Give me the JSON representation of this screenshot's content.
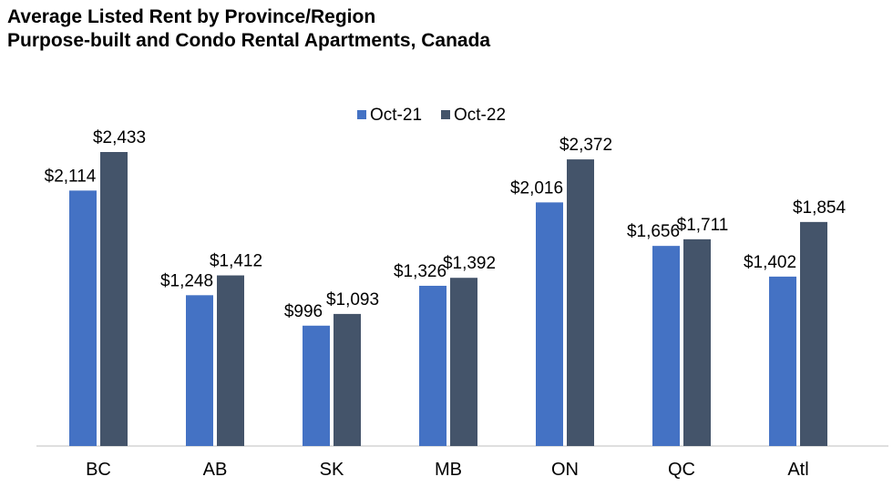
{
  "chart_data": {
    "type": "bar",
    "title": "Average Listed Rent by Province/Region",
    "subtitle": "Purpose-built and Condo Rental Apartments, Canada",
    "categories": [
      "BC",
      "AB",
      "SK",
      "MB",
      "ON",
      "QC",
      "Atl"
    ],
    "series": [
      {
        "name": "Oct-21",
        "color": "#4472c4",
        "values": [
          2114,
          1248,
          996,
          1326,
          2016,
          1656,
          1402
        ],
        "labels": [
          "$2,114",
          "$1,248",
          "$996",
          "$1,326",
          "$2,016",
          "$1,656",
          "$1,402"
        ]
      },
      {
        "name": "Oct-22",
        "color": "#44546a",
        "values": [
          2433,
          1412,
          1093,
          1392,
          2372,
          1711,
          1854
        ],
        "labels": [
          "$2,433",
          "$1,412",
          "$1,093",
          "$1,392",
          "$2,372",
          "$1,711",
          "$1,854"
        ]
      }
    ],
    "ylim": [
      0,
      2500
    ],
    "xlabel": "",
    "ylabel": "",
    "grid": false,
    "legend": "top-center",
    "axis_color": "#bfbfbf"
  }
}
